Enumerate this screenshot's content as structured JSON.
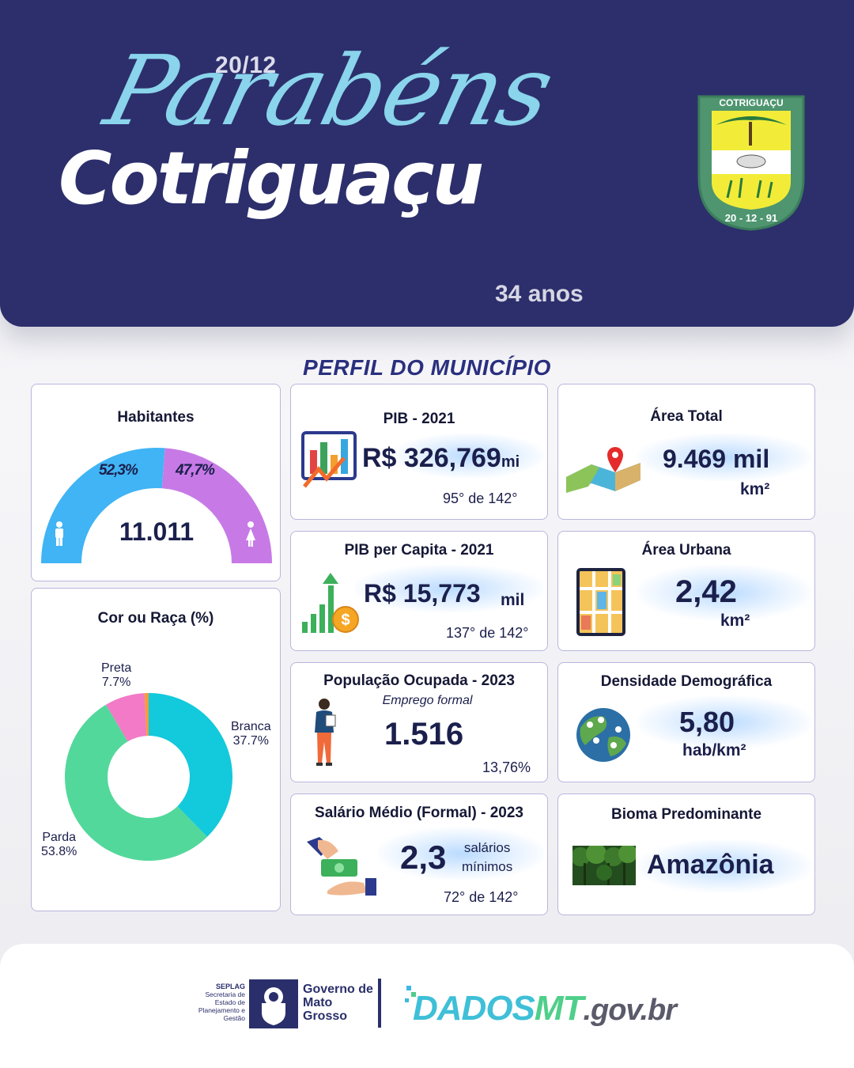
{
  "header": {
    "date": "20/12",
    "script_title": "Parabéns",
    "city": "Cotriguaçu",
    "anniversary": "34 anos",
    "crest": {
      "name": "COTRIGUAÇU",
      "date": "20 - 12 - 91"
    }
  },
  "section_title": "PERFIL DO MUNICÍPIO",
  "habitantes": {
    "title": "Habitantes",
    "total": "11.011",
    "male_pct_label": "52,3%",
    "female_pct_label": "47,7%",
    "male_pct": 52.3,
    "female_pct": 47.7,
    "colors": {
      "male": "#40b4f4",
      "female": "#c77ae6"
    }
  },
  "raca": {
    "title": "Cor ou Raça (%)",
    "chart_data": {
      "type": "pie",
      "title": "Cor ou Raça (%)",
      "slices": [
        {
          "label": "Branca",
          "value": 37.7,
          "value_label": "37.7%",
          "color": "#13c9dc"
        },
        {
          "label": "Parda",
          "value": 53.8,
          "value_label": "53.8%",
          "color": "#53d89b"
        },
        {
          "label": "Preta",
          "value": 7.7,
          "value_label": "7.7%",
          "color": "#f27ac6"
        },
        {
          "label": "",
          "value": 0.8,
          "value_label": "",
          "color": "#f59b3c"
        }
      ]
    }
  },
  "pib": {
    "title": "PIB - 2021",
    "currency": "R$",
    "value": "326,769",
    "unit": "mi",
    "rank": "95°  de 142°"
  },
  "pib_capita": {
    "title": "PIB per Capita - 2021",
    "currency": "R$",
    "value": "15,773",
    "unit": "mil",
    "rank": "137° de 142°"
  },
  "populacao": {
    "title": "População  Ocupada - 2023",
    "subtitle": "Emprego formal",
    "value": "1.516",
    "pct": "13,76%"
  },
  "salario": {
    "title": "Salário Médio (Formal) - 2023",
    "value": "2,3",
    "unit_line1": "salários",
    "unit_line2": "mínimos",
    "rank": "72° de 142°"
  },
  "area_total": {
    "title": "Área Total",
    "value": "9.469 mil",
    "unit": "km²"
  },
  "area_urbana": {
    "title": "Área Urbana",
    "value": "2,42",
    "unit": "km²"
  },
  "densidade": {
    "title": "Densidade Demográfica",
    "value": "5,80",
    "unit": "hab/km²"
  },
  "bioma": {
    "title": "Bioma Predominante",
    "value": "Amazônia"
  },
  "footer": {
    "seplag": "SEPLAG",
    "seplag_desc": "Secretaria de Estado de Planejamento e Gestão",
    "gov_line1": "Governo de",
    "gov_line2": "Mato",
    "gov_line3": "Grosso",
    "dados_part1": "DADOS",
    "dados_part2": "MT",
    "dados_part3": ".gov.br"
  }
}
